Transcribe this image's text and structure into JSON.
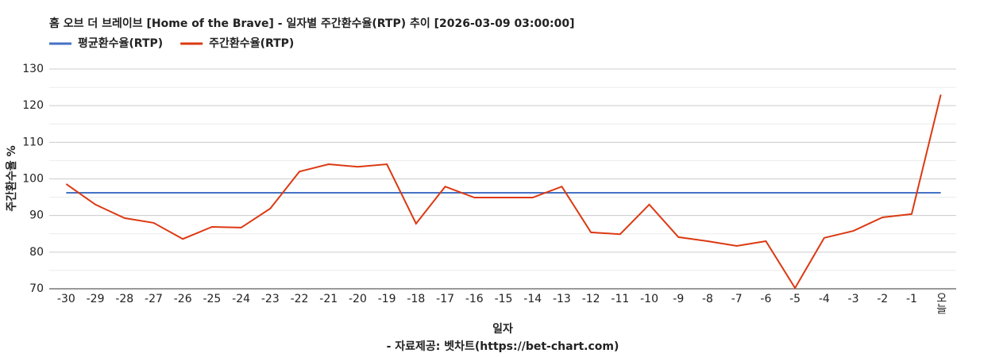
{
  "chart_data": {
    "type": "line",
    "title": "홈 오브 더 브레이브 [Home of the Brave] - 일자별 주간환수율(RTP) 추이 [2026-03-09 03:00:00]",
    "y_label": "주간환수율 %",
    "x_label": "일자",
    "source": "- 자료제공: 벳차트(https://bet-chart.com)",
    "categories": [
      "-30",
      "-29",
      "-28",
      "-27",
      "-26",
      "-25",
      "-24",
      "-23",
      "-22",
      "-21",
      "-20",
      "-19",
      "-18",
      "-17",
      "-16",
      "-15",
      "-14",
      "-13",
      "-12",
      "-11",
      "-10",
      "-9",
      "-8",
      "-7",
      "-6",
      "-5",
      "-4",
      "-3",
      "-2",
      "-1",
      "오늘"
    ],
    "series": [
      {
        "name": "평균환수율(RTP)",
        "color": "#4472c4",
        "values": [
          96.2,
          96.2,
          96.2,
          96.2,
          96.2,
          96.2,
          96.2,
          96.2,
          96.2,
          96.2,
          96.2,
          96.2,
          96.2,
          96.2,
          96.2,
          96.2,
          96.2,
          96.2,
          96.2,
          96.2,
          96.2,
          96.2,
          96.2,
          96.2,
          96.2,
          96.2,
          96.2,
          96.2,
          96.2,
          96.2,
          96.2
        ]
      },
      {
        "name": "주간환수율(RTP)",
        "color": "#dc3912",
        "values": [
          98.6,
          93,
          89.3,
          88,
          83.6,
          86.9,
          86.7,
          91.9,
          102,
          104,
          103.3,
          104,
          87.8,
          97.9,
          94.9,
          94.9,
          94.9,
          97.9,
          85.4,
          84.9,
          93,
          84.1,
          83,
          81.7,
          83,
          70.2,
          83.9,
          85.8,
          89.5,
          90.4,
          123
        ]
      }
    ],
    "ylim": [
      70,
      130
    ],
    "yticks": [
      70,
      80,
      90,
      100,
      110,
      120,
      130
    ],
    "minor_yticks": [
      75,
      85,
      95,
      105,
      115,
      125
    ],
    "grid": true
  }
}
